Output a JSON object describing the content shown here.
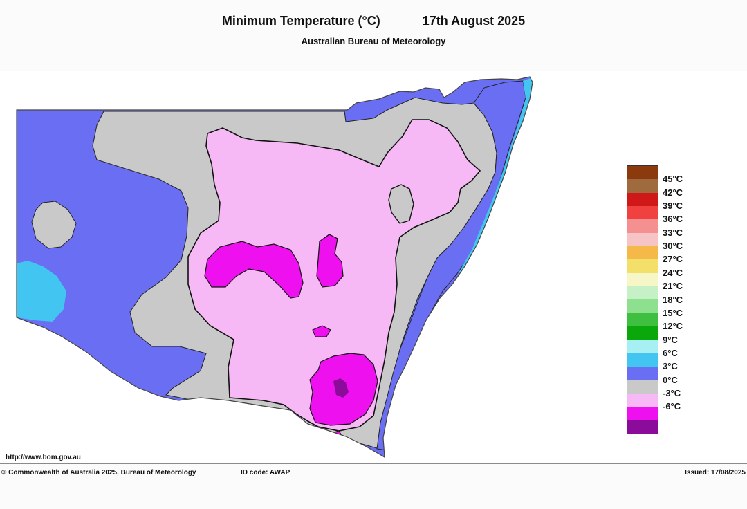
{
  "header": {
    "title": "Minimum Temperature (°C)",
    "date": "17th August 2025",
    "subtitle": "Australian Bureau of Meteorology"
  },
  "map": {
    "url": "http://www.bom.gov.au",
    "colors": {
      "band_neg6": "#8b0c9a",
      "band_neg3": "#ee10ee",
      "band_0": "#f6b9f6",
      "band_3": "#c9c9c9",
      "band_6": "#6a6ef2",
      "band_9": "#43c5f2",
      "ocean": "#ffffff"
    }
  },
  "legend": {
    "items": [
      {
        "label": "45°C",
        "color": "#8b3a0e"
      },
      {
        "label": "42°C",
        "color": "#9e6a3e"
      },
      {
        "label": "39°C",
        "color": "#d01818"
      },
      {
        "label": "36°C",
        "color": "#f04040"
      },
      {
        "label": "33°C",
        "color": "#f59090"
      },
      {
        "label": "30°C",
        "color": "#f6c4c4"
      },
      {
        "label": "27°C",
        "color": "#f5b94a"
      },
      {
        "label": "24°C",
        "color": "#f3e06a"
      },
      {
        "label": "21°C",
        "color": "#f6f6c6"
      },
      {
        "label": "18°C",
        "color": "#c6f0c6"
      },
      {
        "label": "15°C",
        "color": "#8de08d"
      },
      {
        "label": "12°C",
        "color": "#3fbf3f"
      },
      {
        "label": "9°C",
        "color": "#0aa80a"
      },
      {
        "label": "6°C",
        "color": "#a6f0f4"
      },
      {
        "label": "3°C",
        "color": "#43c5f2"
      },
      {
        "label": "0°C",
        "color": "#6a6ef2"
      },
      {
        "label": "-3°C",
        "color": "#c9c9c9"
      },
      {
        "label": "-6°C",
        "color": "#f6b9f6"
      },
      {
        "label": "",
        "color": "#ee10ee"
      },
      {
        "label": "",
        "color": "#8b0c9a"
      }
    ]
  },
  "footer": {
    "copyright": "© Commonwealth of Australia 2025, Bureau of Meteorology",
    "id_code": "ID code: AWAP",
    "issued": "Issued: 17/08/2025"
  }
}
